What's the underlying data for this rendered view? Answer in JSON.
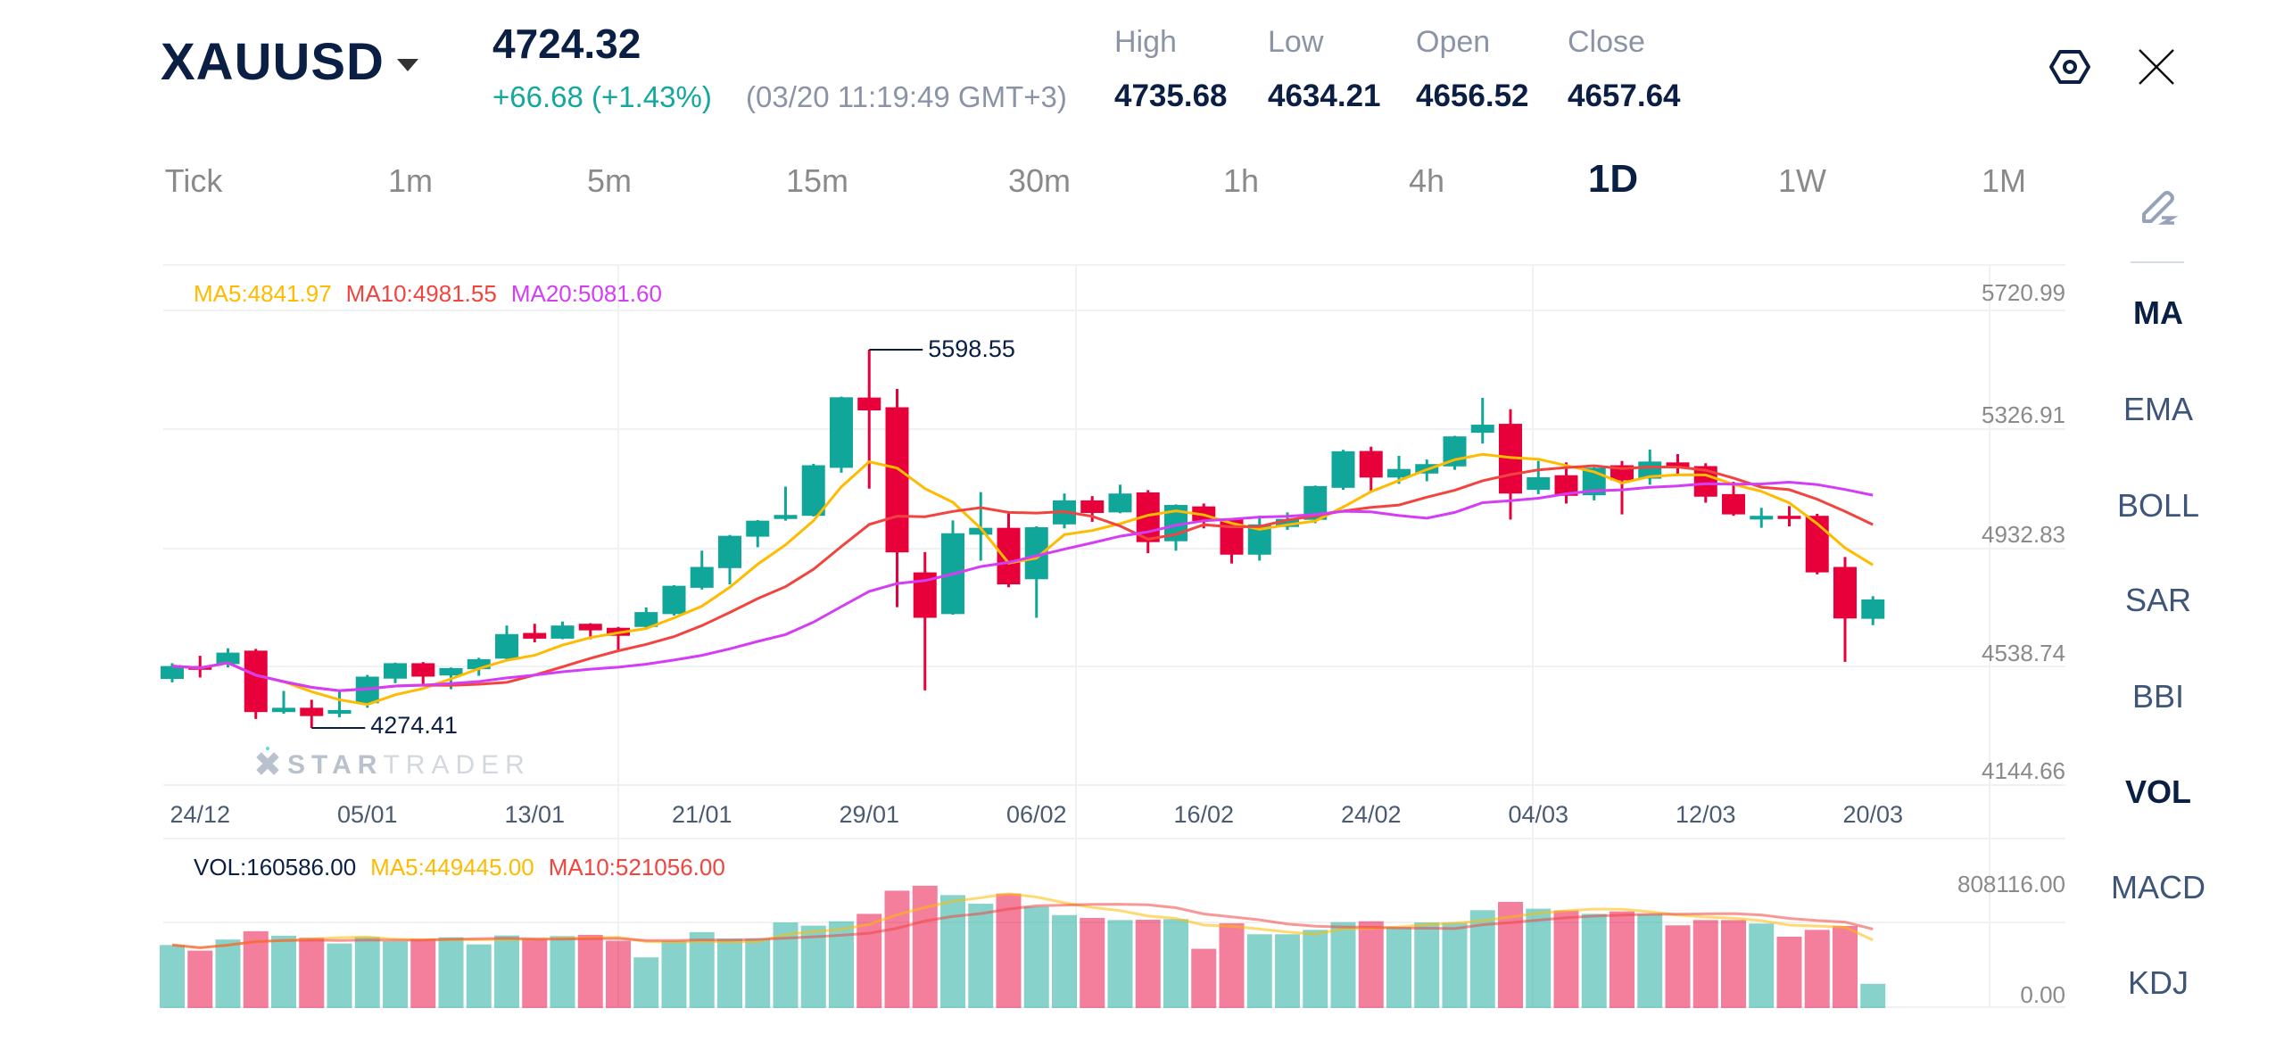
{
  "header": {
    "symbol": "XAUUSD",
    "price": "4724.32",
    "change": "+66.68 (+1.43%)",
    "timestamp": "(03/20 11:19:49 GMT+3)",
    "stats": [
      {
        "label": "High",
        "value": "4735.68"
      },
      {
        "label": "Low",
        "value": "4634.21"
      },
      {
        "label": "Open",
        "value": "4656.52"
      },
      {
        "label": "Close",
        "value": "4657.64"
      }
    ]
  },
  "timeframes": [
    "Tick",
    "1m",
    "5m",
    "15m",
    "30m",
    "1h",
    "4h",
    "1D",
    "1W",
    "1M"
  ],
  "active_timeframe": "1D",
  "indicators": [
    "MA",
    "EMA",
    "BOLL",
    "SAR",
    "BBI",
    "VOL",
    "MACD",
    "KDJ"
  ],
  "active_indicators": [
    "MA",
    "VOL"
  ],
  "watermark": "STARTRADER",
  "colors": {
    "up": "#10a79a",
    "down": "#e8003b",
    "ma5": "#ffbb00",
    "ma10": "#f2443f",
    "ma20": "#d43df5",
    "text": "#0b1f44"
  },
  "chart_data": [
    {
      "type": "candlestick",
      "title": "XAUUSD 1D",
      "legend": {
        "ma5": "MA5:4841.97",
        "ma10": "MA10:4981.55",
        "ma20": "MA20:5081.60"
      },
      "y_ticks": [
        "5720.99",
        "5326.91",
        "4932.83",
        "4538.74",
        "4144.66"
      ],
      "x_ticks": [
        "24/12",
        "05/01",
        "13/01",
        "21/01",
        "29/01",
        "06/02",
        "16/02",
        "24/02",
        "04/03",
        "12/03",
        "20/03"
      ],
      "ylim": [
        4074.5,
        5895.2
      ],
      "max_label": "5598.55",
      "min_label": "4274.41",
      "ohlc": [
        [
          4446,
          4501,
          4434,
          4491
        ],
        [
          4491,
          4527,
          4451,
          4478
        ],
        [
          4498,
          4553,
          4486,
          4538
        ],
        [
          4545,
          4551,
          4306,
          4330
        ],
        [
          4330,
          4404,
          4324,
          4345
        ],
        [
          4345,
          4373,
          4274.41,
          4316
        ],
        [
          4324,
          4402,
          4312,
          4337
        ],
        [
          4361,
          4460,
          4345,
          4454
        ],
        [
          4447,
          4503,
          4431,
          4501
        ],
        [
          4501,
          4505,
          4426,
          4454
        ],
        [
          4458,
          4486,
          4410,
          4484
        ],
        [
          4480,
          4520,
          4457,
          4515
        ],
        [
          4517,
          4633,
          4514,
          4603
        ],
        [
          4607,
          4639,
          4574,
          4587
        ],
        [
          4587,
          4647,
          4585,
          4633
        ],
        [
          4639,
          4641,
          4585,
          4616
        ],
        [
          4625,
          4628,
          4543,
          4597
        ],
        [
          4628,
          4696,
          4625,
          4680
        ],
        [
          4673,
          4774,
          4668,
          4772
        ],
        [
          4765,
          4895,
          4759,
          4838
        ],
        [
          4834,
          4950,
          4777,
          4947
        ],
        [
          4944,
          5002,
          4907,
          5000
        ],
        [
          5006,
          5119,
          5000,
          5020
        ],
        [
          5017,
          5199,
          5015,
          5194
        ],
        [
          5185,
          5434,
          5168,
          5432
        ],
        [
          5431,
          5598.55,
          5112,
          5386
        ],
        [
          5397,
          5461,
          4697,
          4889
        ],
        [
          4819,
          4890,
          4406,
          4660
        ],
        [
          4673,
          5001,
          4671,
          4956
        ],
        [
          4951,
          5100,
          4860,
          4975
        ],
        [
          4975,
          5027,
          4767,
          4777
        ],
        [
          4795,
          4980,
          4660,
          4977
        ],
        [
          4987,
          5095,
          4973,
          5071
        ],
        [
          5071,
          5086,
          4996,
          5027
        ],
        [
          5029,
          5126,
          5026,
          5095
        ],
        [
          5099,
          5107,
          4886,
          4925
        ],
        [
          4928,
          5057,
          4895,
          5055
        ],
        [
          5050,
          5060,
          4973,
          4999
        ],
        [
          5006,
          5008,
          4850,
          4881
        ],
        [
          4881,
          5017,
          4860,
          4987
        ],
        [
          4978,
          5029,
          4968,
          5006
        ],
        [
          5003,
          5123,
          4991,
          5121
        ],
        [
          5115,
          5248,
          5108,
          5243
        ],
        [
          5244,
          5259,
          5103,
          5151
        ],
        [
          5151,
          5227,
          5129,
          5181
        ],
        [
          5165,
          5214,
          5138,
          5198
        ],
        [
          5190,
          5297,
          5178,
          5295
        ],
        [
          5308,
          5430,
          5270,
          5336
        ],
        [
          5339,
          5390,
          5004,
          5095
        ],
        [
          5108,
          5209,
          5093,
          5152
        ],
        [
          5159,
          5204,
          5060,
          5087
        ],
        [
          5089,
          5187,
          5071,
          5185
        ],
        [
          5194,
          5209,
          5022,
          5141
        ],
        [
          5147,
          5249,
          5126,
          5207
        ],
        [
          5204,
          5233,
          5162,
          5183
        ],
        [
          5191,
          5201,
          5063,
          5084
        ],
        [
          5093,
          5136,
          5017,
          5022
        ],
        [
          5004,
          5045,
          4975,
          5017
        ],
        [
          5017,
          5051,
          4980,
          5006
        ],
        [
          5017,
          5024,
          4812,
          4819
        ],
        [
          4838,
          4873,
          4506,
          4657.64
        ],
        [
          4656.52,
          4735.68,
          4634.21,
          4724.32
        ]
      ],
      "ma_periods": [
        5,
        10,
        20
      ]
    },
    {
      "type": "bar",
      "title": "VOL",
      "legend": {
        "vol": "VOL:160586.00",
        "ma5": "MA5:449445.00",
        "ma10": "MA10:521056.00"
      },
      "y_ticks": [
        "808116.00",
        "0.00"
      ],
      "ylim": [
        0,
        808116
      ],
      "values": [
        417000,
        380000,
        453000,
        508000,
        478000,
        465000,
        427000,
        470000,
        441000,
        457000,
        468000,
        421000,
        480000,
        457000,
        476000,
        484000,
        445000,
        335000,
        443000,
        502000,
        459000,
        459000,
        566000,
        545000,
        574000,
        623000,
        776000,
        809000,
        747000,
        690000,
        757000,
        670000,
        615000,
        596000,
        582000,
        584000,
        588000,
        392000,
        561000,
        488000,
        488000,
        517000,
        568000,
        574000,
        535000,
        566000,
        564000,
        647000,
        702000,
        657000,
        645000,
        623000,
        639000,
        621000,
        547000,
        582000,
        582000,
        559000,
        472000,
        517000,
        543000,
        160586
      ],
      "ma_periods": [
        5,
        10
      ]
    }
  ]
}
